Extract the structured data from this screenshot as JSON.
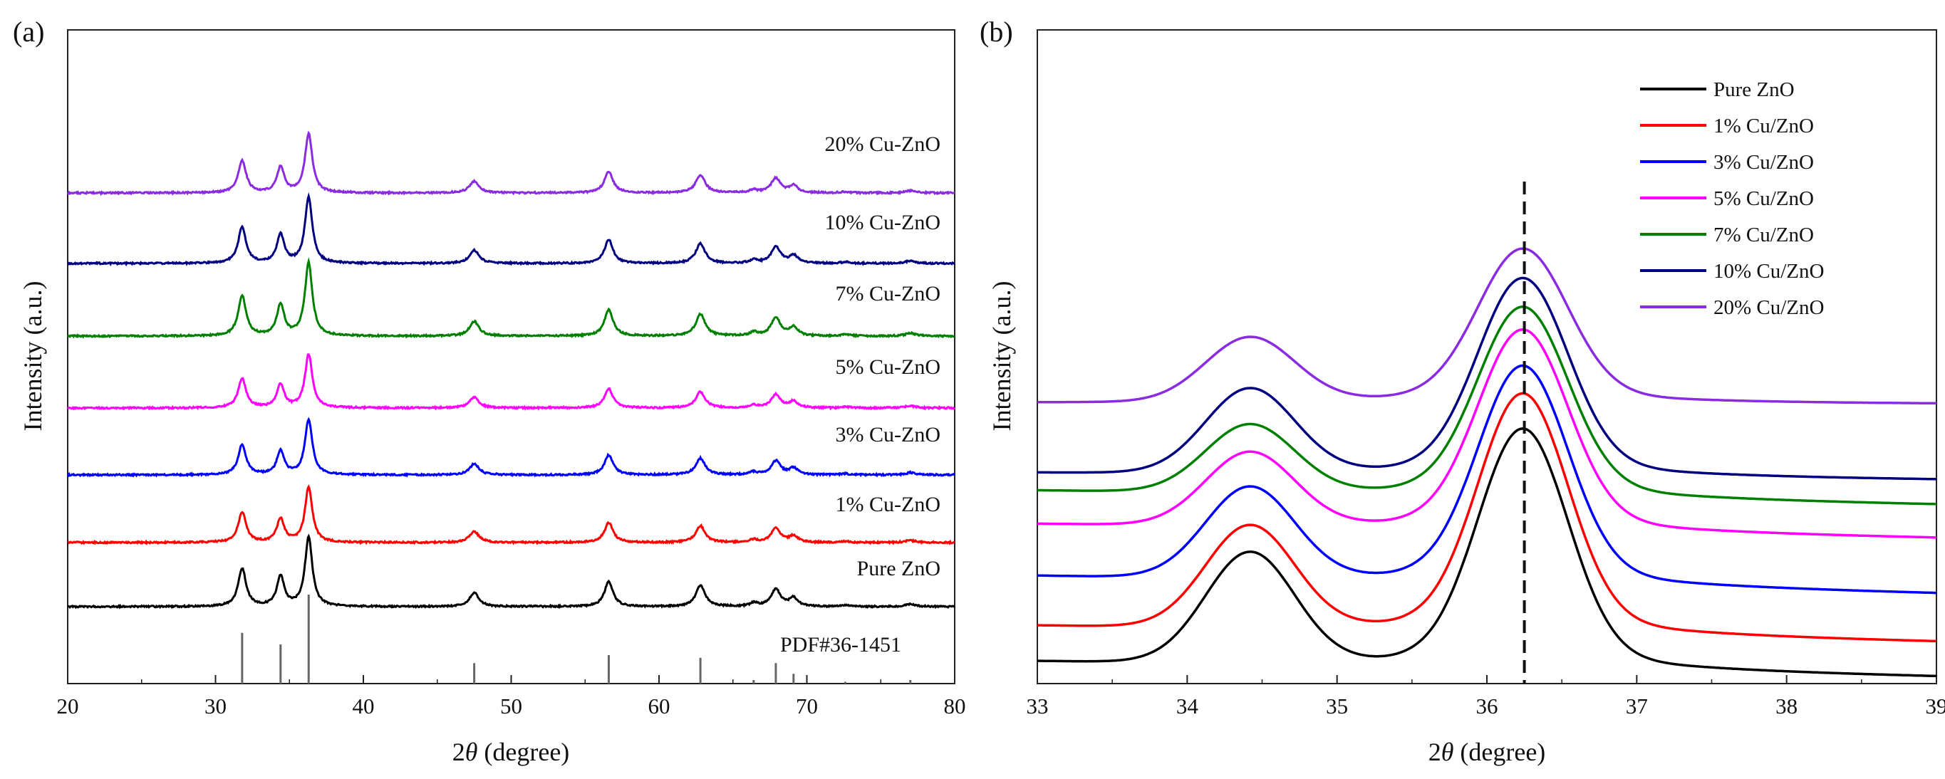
{
  "chart_data": [
    {
      "panel": "(a)",
      "type": "line",
      "xlabel": "2θ (degree)",
      "ylabel": "Intensity (a.u.)",
      "xlim": [
        20,
        80
      ],
      "xticks": [
        20,
        30,
        40,
        50,
        60,
        70,
        80
      ],
      "peaks_2theta": [
        31.8,
        34.4,
        36.3,
        47.5,
        56.6,
        62.8,
        66.4,
        67.9,
        69.1,
        77.0
      ],
      "series": [
        {
          "name": "Pure ZnO",
          "label": "Pure ZnO",
          "color": "#000000",
          "offset": 0,
          "scale": 0.78
        },
        {
          "name": "1% Cu-ZnO",
          "label": "1% Cu-ZnO",
          "color": "#ff0000",
          "offset": 1,
          "scale": 0.62
        },
        {
          "name": "3% Cu-ZnO",
          "label": "3% Cu-ZnO",
          "color": "#0000ff",
          "offset": 2,
          "scale": 0.62
        },
        {
          "name": "5% Cu-ZnO",
          "label": "5% Cu-ZnO",
          "color": "#ff00ff",
          "offset": 3,
          "scale": 0.6
        },
        {
          "name": "7% Cu-ZnO",
          "label": "7% Cu-ZnO",
          "color": "#008000",
          "offset": 4,
          "scale": 0.82
        },
        {
          "name": "10% Cu-ZnO",
          "label": "10% Cu-ZnO",
          "color": "#000080",
          "offset": 5,
          "scale": 0.74
        },
        {
          "name": "20% Cu-ZnO",
          "label": "20% Cu-ZnO",
          "color": "#8a2be2",
          "offset": 6,
          "scale": 0.66
        }
      ],
      "reference": {
        "label": "PDF#36-1451",
        "lines": [
          {
            "x": 31.8,
            "h": 57
          },
          {
            "x": 34.4,
            "h": 44
          },
          {
            "x": 36.3,
            "h": 100
          },
          {
            "x": 47.5,
            "h": 23
          },
          {
            "x": 56.6,
            "h": 32
          },
          {
            "x": 62.8,
            "h": 29
          },
          {
            "x": 66.4,
            "h": 4
          },
          {
            "x": 67.9,
            "h": 23
          },
          {
            "x": 69.1,
            "h": 11
          },
          {
            "x": 72.6,
            "h": 2
          },
          {
            "x": 77.0,
            "h": 4
          }
        ]
      }
    },
    {
      "panel": "(b)",
      "type": "line",
      "xlabel": "2θ (degree)",
      "ylabel": "Intensity (a.u.)",
      "xlim": [
        33,
        39
      ],
      "xticks": [
        33,
        34,
        35,
        36,
        37,
        38,
        39
      ],
      "dashed_line_x": 36.25,
      "legend_position": "top-right",
      "series": [
        {
          "name": "Pure ZnO",
          "color": "#000000"
        },
        {
          "name": "1% Cu/ZnO",
          "color": "#ff0000"
        },
        {
          "name": "3% Cu/ZnO",
          "color": "#0000ff"
        },
        {
          "name": "5% Cu/ZnO",
          "color": "#ff00ff"
        },
        {
          "name": "7% Cu/ZnO",
          "color": "#008000"
        },
        {
          "name": "10% Cu/ZnO",
          "color": "#000080"
        },
        {
          "name": "20% Cu/ZnO",
          "color": "#8a2be2"
        }
      ]
    }
  ]
}
